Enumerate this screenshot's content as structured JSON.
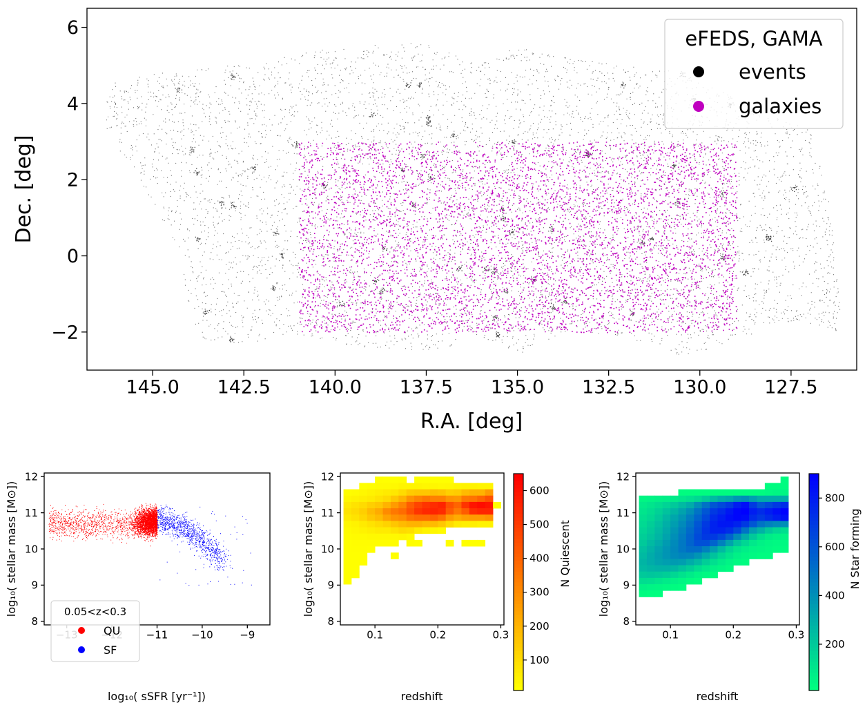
{
  "chart_data": [
    {
      "type": "scatter",
      "xlabel": "R.A. [deg]",
      "ylabel": "Dec. [deg]",
      "xlim": [
        146.8,
        125.7
      ],
      "ylim": [
        -3.0,
        6.5
      ],
      "x_ticks": [
        145.0,
        142.5,
        140.0,
        137.5,
        135.0,
        132.5,
        130.0,
        127.5
      ],
      "x_tick_labels": [
        "145.0",
        "142.5",
        "140.0",
        "137.5",
        "135.0",
        "132.5",
        "130.0",
        "127.5"
      ],
      "y_ticks": [
        -2,
        0,
        2,
        4,
        6
      ],
      "y_tick_labels": [
        "−2",
        "0",
        "2",
        "4",
        "6"
      ],
      "legend": {
        "title": "eFEDS, GAMA",
        "placement": "top-right",
        "entries": [
          {
            "label": "events",
            "color": "#000000"
          },
          {
            "label": "galaxies",
            "color": "#bf00bf"
          }
        ]
      },
      "series": [
        {
          "name": "events",
          "color": "#000000",
          "footprint_polygon": [
            [
              146.3,
              4.5
            ],
            [
              144.5,
              4.9
            ],
            [
              142.0,
              5.1
            ],
            [
              140.0,
              5.5
            ],
            [
              137.5,
              5.6
            ],
            [
              136.0,
              5.1
            ],
            [
              135.0,
              5.5
            ],
            [
              133.5,
              5.2
            ],
            [
              132.0,
              5.0
            ],
            [
              130.3,
              4.8
            ],
            [
              128.8,
              4.0
            ],
            [
              127.0,
              3.3
            ],
            [
              126.5,
              1.8
            ],
            [
              126.1,
              -2.0
            ],
            [
              127.7,
              -1.7
            ],
            [
              129.5,
              -2.4
            ],
            [
              130.5,
              -2.7
            ],
            [
              131.3,
              -2.3
            ],
            [
              133.5,
              -1.9
            ],
            [
              134.8,
              -2.6
            ],
            [
              136.0,
              -2.2
            ],
            [
              137.6,
              -2.5
            ],
            [
              139.2,
              -2.4
            ],
            [
              141.0,
              -2.1
            ],
            [
              142.5,
              -2.3
            ],
            [
              143.6,
              -2.2
            ],
            [
              144.1,
              -1.3
            ],
            [
              144.2,
              0.0
            ],
            [
              145.0,
              1.3
            ],
            [
              145.7,
              2.4
            ],
            [
              146.3,
              3.4
            ]
          ]
        },
        {
          "name": "galaxies",
          "color": "#bf00bf",
          "ra_range": [
            129.0,
            141.0
          ],
          "dec_range": [
            -2.0,
            3.0
          ]
        }
      ]
    },
    {
      "type": "scatter",
      "xlabel": "log₁₀( sSFR [yr⁻¹])",
      "ylabel": "log₁₀( stellar mass [M⊙])",
      "xlim": [
        -13.5,
        -8.5
      ],
      "ylim": [
        7.9,
        12.1
      ],
      "x_ticks": [
        -13,
        -12,
        -11,
        -10,
        -9
      ],
      "x_tick_labels": [
        "−13",
        "−12",
        "−11",
        "−10",
        "−9"
      ],
      "y_ticks": [
        8,
        9,
        10,
        11,
        12
      ],
      "y_tick_labels": [
        "8",
        "9",
        "10",
        "11",
        "12"
      ],
      "legend": {
        "title": "0.05<z<0.3",
        "placement": "lower-left",
        "entries": [
          {
            "label": "QU",
            "color": "#ff0000"
          },
          {
            "label": "SF",
            "color": "#0000ff"
          }
        ]
      },
      "series": [
        {
          "name": "QU",
          "color": "#ff0000",
          "ssfr_range": [
            -13.5,
            -11.0
          ],
          "mass_range": [
            9.9,
            11.9
          ]
        },
        {
          "name": "SF",
          "color": "#0000ff",
          "ssfr_range": [
            -11.0,
            -8.9
          ],
          "mass_range": [
            8.4,
            11.5
          ]
        }
      ]
    },
    {
      "type": "heatmap",
      "xlabel": "redshift",
      "ylabel": "log₁₀( stellar mass [M⊙])",
      "xlim": [
        0.045,
        0.305
      ],
      "ylim": [
        7.9,
        12.1
      ],
      "x_ticks": [
        0.1,
        0.2,
        0.3
      ],
      "x_tick_labels": [
        "0.1",
        "0.2",
        "0.3"
      ],
      "y_ticks": [
        8,
        9,
        10,
        11,
        12
      ],
      "y_tick_labels": [
        "8",
        "9",
        "10",
        "11",
        "12"
      ],
      "colorbar": {
        "label": "N Quiescent",
        "colormap": "autumn_r",
        "range": [
          10,
          650
        ],
        "ticks": [
          100,
          200,
          300,
          400,
          500,
          600
        ],
        "tick_labels": [
          "100",
          "200",
          "300",
          "400",
          "500",
          "600"
        ]
      },
      "x_bins": [
        0.05,
        0.3
      ],
      "y_bins": [
        8.5,
        12.0
      ],
      "bin_size": [
        0.0125,
        0.175
      ],
      "rows_top_to_bottom": [
        [
          0,
          0,
          0,
          0,
          12,
          10,
          10,
          12,
          0,
          10,
          10,
          10,
          10,
          10,
          0,
          0,
          0,
          0,
          0,
          0
        ],
        [
          0,
          0,
          10,
          15,
          20,
          20,
          25,
          35,
          35,
          35,
          30,
          30,
          25,
          28,
          35,
          40,
          40,
          35,
          35,
          0
        ],
        [
          15,
          20,
          30,
          40,
          50,
          60,
          70,
          100,
          140,
          150,
          150,
          170,
          160,
          130,
          140,
          180,
          200,
          200,
          260,
          0
        ],
        [
          30,
          40,
          50,
          60,
          80,
          100,
          150,
          200,
          280,
          320,
          350,
          330,
          330,
          280,
          270,
          350,
          360,
          400,
          450,
          0
        ],
        [
          60,
          80,
          100,
          130,
          150,
          200,
          260,
          320,
          420,
          480,
          520,
          540,
          560,
          450,
          400,
          520,
          600,
          620,
          600,
          12
        ],
        [
          80,
          100,
          130,
          180,
          220,
          300,
          350,
          380,
          450,
          520,
          550,
          560,
          540,
          420,
          350,
          420,
          540,
          560,
          560,
          0
        ],
        [
          60,
          80,
          110,
          150,
          180,
          240,
          280,
          300,
          360,
          380,
          380,
          400,
          360,
          260,
          220,
          250,
          260,
          260,
          280,
          0
        ],
        [
          30,
          40,
          60,
          80,
          100,
          120,
          150,
          180,
          200,
          200,
          180,
          180,
          150,
          100,
          60,
          50,
          50,
          40,
          40,
          0
        ],
        [
          20,
          30,
          40,
          50,
          60,
          60,
          80,
          100,
          90,
          60,
          40,
          30,
          20,
          0,
          0,
          0,
          0,
          0,
          0,
          0
        ],
        [
          15,
          20,
          20,
          25,
          25,
          25,
          25,
          30,
          20,
          0,
          0,
          0,
          0,
          0,
          0,
          0,
          0,
          0,
          0,
          0
        ],
        [
          10,
          15,
          15,
          15,
          15,
          15,
          15,
          0,
          12,
          10,
          0,
          0,
          0,
          12,
          0,
          10,
          10,
          10,
          0,
          0
        ],
        [
          10,
          12,
          12,
          10,
          0,
          0,
          0,
          0,
          0,
          0,
          0,
          0,
          0,
          0,
          0,
          0,
          0,
          0,
          0,
          0
        ],
        [
          10,
          10,
          10,
          0,
          0,
          0,
          12,
          0,
          0,
          0,
          0,
          0,
          0,
          0,
          0,
          0,
          0,
          0,
          0,
          0
        ],
        [
          10,
          10,
          10,
          0,
          0,
          0,
          0,
          0,
          0,
          0,
          0,
          0,
          0,
          0,
          0,
          0,
          0,
          0,
          0,
          0
        ],
        [
          10,
          10,
          0,
          0,
          0,
          0,
          0,
          0,
          0,
          0,
          0,
          0,
          0,
          0,
          0,
          0,
          0,
          0,
          0,
          0
        ],
        [
          10,
          10,
          0,
          0,
          0,
          0,
          0,
          0,
          0,
          0,
          0,
          0,
          0,
          0,
          0,
          0,
          0,
          0,
          0,
          0
        ],
        [
          10,
          0,
          0,
          0,
          0,
          0,
          0,
          0,
          0,
          0,
          0,
          0,
          0,
          0,
          0,
          0,
          0,
          0,
          0,
          0
        ],
        [
          0,
          0,
          0,
          0,
          0,
          0,
          0,
          0,
          0,
          0,
          0,
          0,
          0,
          0,
          0,
          0,
          0,
          0,
          0,
          0
        ],
        [
          0,
          0,
          0,
          0,
          0,
          0,
          0,
          0,
          0,
          0,
          0,
          0,
          0,
          0,
          0,
          0,
          0,
          0,
          0,
          0
        ],
        [
          0,
          0,
          0,
          0,
          0,
          0,
          0,
          0,
          0,
          0,
          0,
          0,
          0,
          0,
          0,
          0,
          0,
          0,
          0,
          0
        ]
      ]
    },
    {
      "type": "heatmap",
      "xlabel": "redshift",
      "ylabel": "log₁₀( stellar mass [M⊙])",
      "xlim": [
        0.045,
        0.305
      ],
      "ylim": [
        7.9,
        12.1
      ],
      "x_ticks": [
        0.1,
        0.2,
        0.3
      ],
      "x_tick_labels": [
        "0.1",
        "0.2",
        "0.3"
      ],
      "y_ticks": [
        8,
        9,
        10,
        11,
        12
      ],
      "y_tick_labels": [
        "8",
        "9",
        "10",
        "11",
        "12"
      ],
      "colorbar": {
        "label": "N Star forming",
        "colormap": "winter_r",
        "range": [
          10,
          900
        ],
        "ticks": [
          200,
          400,
          600,
          800
        ],
        "tick_labels": [
          "200",
          "400",
          "600",
          "800"
        ]
      },
      "x_bins": [
        0.05,
        0.3
      ],
      "y_bins": [
        8.5,
        12.0
      ],
      "bin_size": [
        0.0125,
        0.175
      ],
      "rows_top_to_bottom": [
        [
          0,
          0,
          0,
          0,
          0,
          0,
          0,
          0,
          0,
          0,
          0,
          0,
          0,
          0,
          0,
          0,
          0,
          0,
          20,
          0
        ],
        [
          0,
          0,
          0,
          0,
          0,
          0,
          0,
          0,
          0,
          0,
          0,
          0,
          0,
          0,
          0,
          0,
          20,
          20,
          20,
          0
        ],
        [
          0,
          0,
          0,
          0,
          0,
          20,
          20,
          20,
          20,
          20,
          20,
          20,
          20,
          20,
          20,
          20,
          30,
          40,
          40,
          0
        ],
        [
          40,
          50,
          60,
          70,
          80,
          100,
          120,
          150,
          200,
          250,
          300,
          320,
          380,
          400,
          350,
          300,
          300,
          300,
          300,
          0
        ],
        [
          80,
          100,
          130,
          160,
          200,
          250,
          300,
          400,
          500,
          600,
          650,
          700,
          800,
          850,
          700,
          600,
          650,
          700,
          750,
          0
        ],
        [
          100,
          130,
          170,
          220,
          270,
          330,
          400,
          500,
          600,
          700,
          750,
          820,
          880,
          900,
          800,
          750,
          800,
          850,
          900,
          0
        ],
        [
          120,
          150,
          200,
          260,
          320,
          380,
          460,
          550,
          650,
          750,
          800,
          850,
          880,
          860,
          750,
          700,
          750,
          800,
          850,
          0
        ],
        [
          140,
          180,
          230,
          290,
          350,
          420,
          500,
          600,
          700,
          780,
          820,
          820,
          780,
          700,
          600,
          500,
          450,
          420,
          400,
          0
        ],
        [
          160,
          200,
          250,
          310,
          380,
          450,
          530,
          620,
          720,
          780,
          780,
          740,
          650,
          500,
          350,
          280,
          200,
          150,
          120,
          0
        ],
        [
          180,
          220,
          270,
          330,
          400,
          470,
          550,
          640,
          700,
          700,
          650,
          550,
          420,
          300,
          200,
          120,
          80,
          60,
          50,
          0
        ],
        [
          200,
          250,
          300,
          360,
          420,
          480,
          550,
          620,
          620,
          550,
          450,
          330,
          220,
          150,
          90,
          60,
          40,
          30,
          30,
          0
        ],
        [
          230,
          280,
          330,
          380,
          430,
          480,
          520,
          520,
          450,
          350,
          250,
          160,
          100,
          70,
          50,
          40,
          30,
          20,
          20,
          0
        ],
        [
          250,
          300,
          340,
          380,
          420,
          440,
          430,
          380,
          300,
          220,
          150,
          100,
          60,
          40,
          30,
          20,
          20,
          0,
          0,
          0
        ],
        [
          270,
          300,
          330,
          350,
          360,
          350,
          300,
          250,
          180,
          120,
          80,
          50,
          30,
          20,
          0,
          0,
          0,
          0,
          0,
          0
        ],
        [
          250,
          270,
          280,
          280,
          260,
          220,
          180,
          130,
          90,
          60,
          40,
          25,
          0,
          0,
          0,
          0,
          0,
          0,
          0,
          0
        ],
        [
          200,
          210,
          200,
          180,
          150,
          110,
          80,
          50,
          30,
          20,
          0,
          0,
          0,
          0,
          0,
          0,
          0,
          0,
          0,
          0
        ],
        [
          130,
          120,
          100,
          80,
          60,
          40,
          25,
          15,
          0,
          0,
          0,
          0,
          0,
          0,
          0,
          0,
          0,
          0,
          0,
          0
        ],
        [
          60,
          50,
          40,
          30,
          20,
          15,
          0,
          0,
          0,
          0,
          0,
          0,
          0,
          0,
          0,
          0,
          0,
          0,
          0,
          0
        ],
        [
          20,
          15,
          10,
          0,
          0,
          0,
          0,
          0,
          0,
          0,
          0,
          0,
          0,
          0,
          0,
          0,
          0,
          0,
          0,
          0
        ],
        [
          0,
          0,
          0,
          0,
          0,
          0,
          0,
          0,
          0,
          0,
          0,
          0,
          0,
          0,
          0,
          0,
          0,
          0,
          0,
          0
        ]
      ]
    }
  ]
}
